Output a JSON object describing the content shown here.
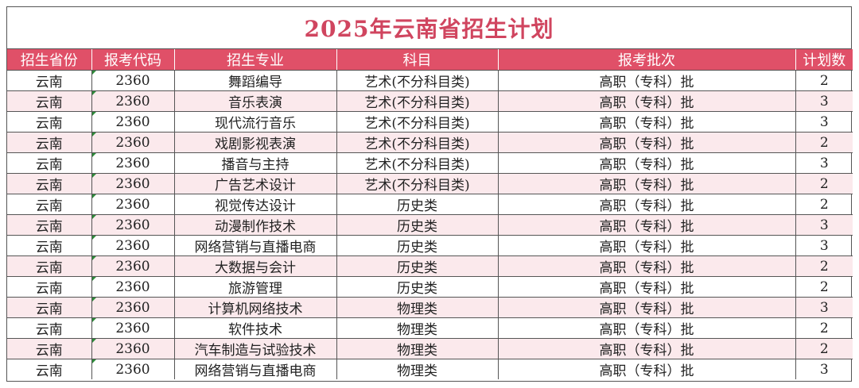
{
  "title": "2025年云南省招生计划",
  "headers": [
    "招生省份",
    "报考代码",
    "招生专业",
    "科目",
    "报考批次",
    "计划数"
  ],
  "rows": [
    [
      "云南",
      "2360",
      "舞蹈编导",
      "艺术(不分科目类)",
      "高职（专科）批",
      "2"
    ],
    [
      "云南",
      "2360",
      "音乐表演",
      "艺术(不分科目类)",
      "高职（专科）批",
      "3"
    ],
    [
      "云南",
      "2360",
      "现代流行音乐",
      "艺术(不分科目类)",
      "高职（专科）批",
      "3"
    ],
    [
      "云南",
      "2360",
      "戏剧影视表演",
      "艺术(不分科目类)",
      "高职（专科）批",
      "2"
    ],
    [
      "云南",
      "2360",
      "播音与主持",
      "艺术(不分科目类)",
      "高职（专科）批",
      "3"
    ],
    [
      "云南",
      "2360",
      "广告艺术设计",
      "艺术(不分科目类)",
      "高职（专科）批",
      "2"
    ],
    [
      "云南",
      "2360",
      "视觉传达设计",
      "历史类",
      "高职（专科）批",
      "2"
    ],
    [
      "云南",
      "2360",
      "动漫制作技术",
      "历史类",
      "高职（专科）批",
      "3"
    ],
    [
      "云南",
      "2360",
      "网络营销与直播电商",
      "历史类",
      "高职（专科）批",
      "3"
    ],
    [
      "云南",
      "2360",
      "大数据与会计",
      "历史类",
      "高职（专科）批",
      "2"
    ],
    [
      "云南",
      "2360",
      "旅游管理",
      "历史类",
      "高职（专科）批",
      "2"
    ],
    [
      "云南",
      "2360",
      "计算机网络技术",
      "物理类",
      "高职（专科）批",
      "3"
    ],
    [
      "云南",
      "2360",
      "软件技术",
      "物理类",
      "高职（专科）批",
      "2"
    ],
    [
      "云南",
      "2360",
      "汽车制造与试验技术",
      "物理类",
      "高职（专科）批",
      "2"
    ],
    [
      "云南",
      "2360",
      "网络营销与直播电商",
      "物理类",
      "高职（专科）批",
      "3"
    ]
  ],
  "colors": {
    "title": "#d0455f",
    "header_bg": "#e05068",
    "alt_row_bg": "#fbe9ec"
  }
}
